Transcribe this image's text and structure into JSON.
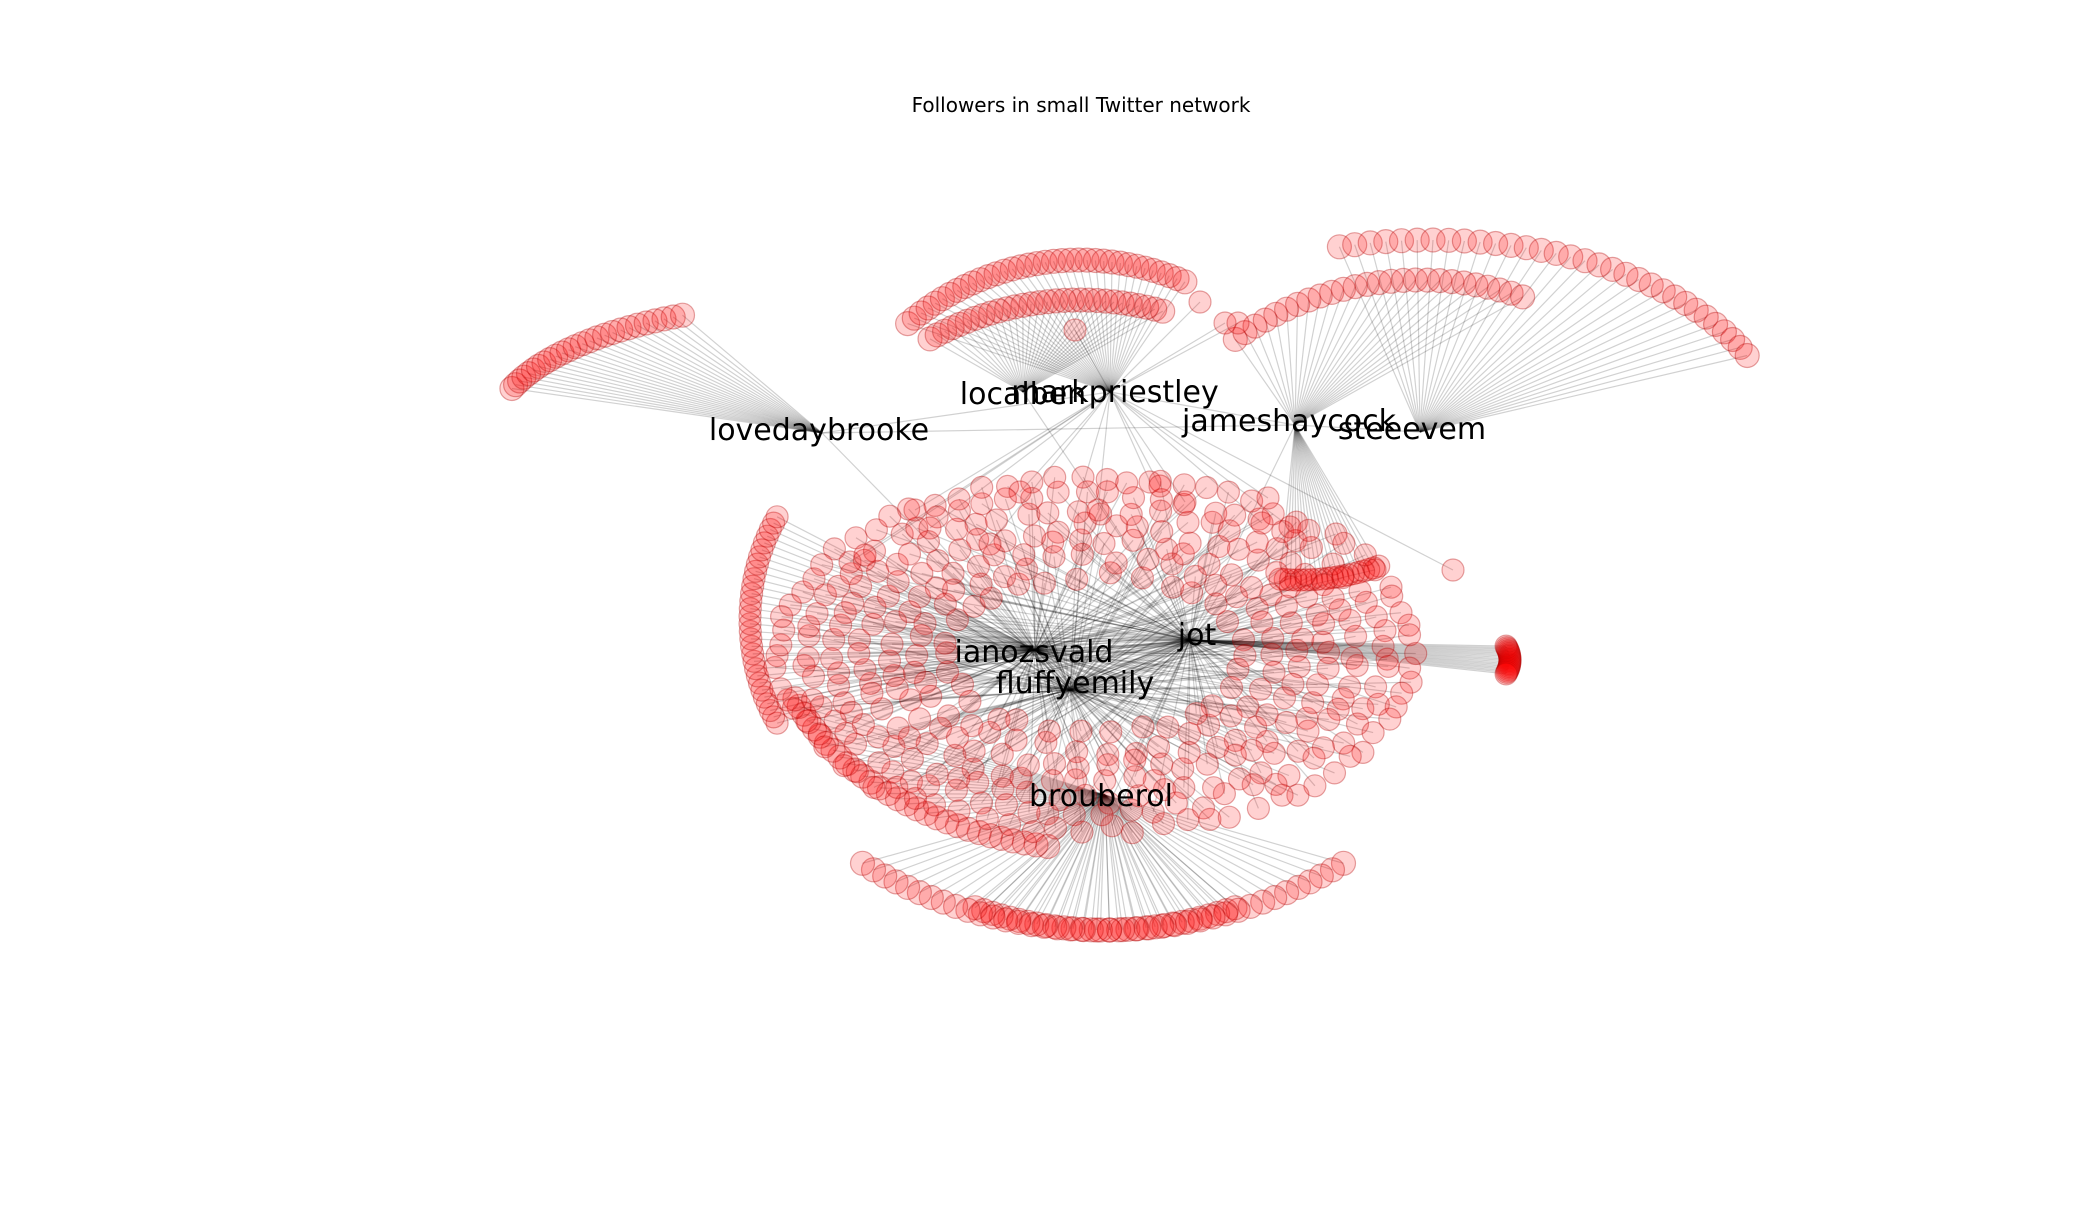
{
  "figure": {
    "title": "Followers in small Twitter network"
  },
  "colors": {
    "node_fill": "#ff0000",
    "edge": "#000000",
    "background": "#ffffff"
  },
  "hubs": [
    {
      "id": "localben",
      "label": "localben"
    },
    {
      "id": "markpriestley",
      "label": "markpriestley"
    },
    {
      "id": "lovedaybrooke",
      "label": "lovedaybrooke"
    },
    {
      "id": "jameshaycock",
      "label": "jameshaycock"
    },
    {
      "id": "steeevem",
      "label": "steeevem"
    },
    {
      "id": "ianozsvald",
      "label": "ianozsvald"
    },
    {
      "id": "fluffyemily",
      "label": "fluffyemily"
    },
    {
      "id": "jot",
      "label": "jot"
    },
    {
      "id": "brouberol",
      "label": "brouberol"
    }
  ]
}
